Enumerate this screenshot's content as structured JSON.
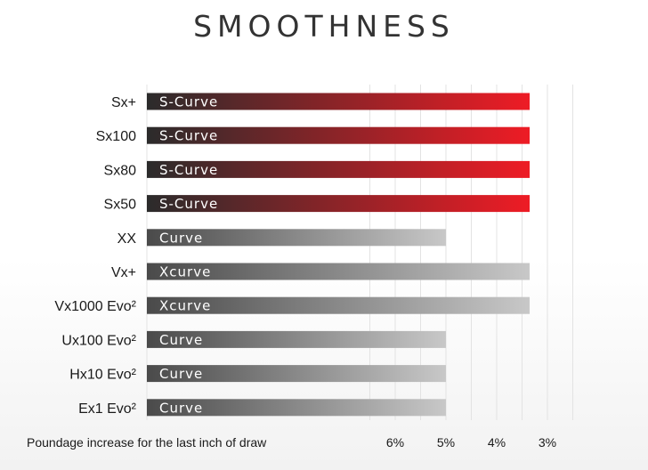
{
  "title": "SMOOTHNESS",
  "chart_data": {
    "type": "bar",
    "orientation": "horizontal",
    "title": "SMOOTHNESS",
    "xlabel": "Poundage increase for the last inch of draw",
    "ylabel": "",
    "x_reversed": true,
    "xlim": [
      6.9,
      2.5
    ],
    "x_ticks": [
      6,
      5,
      4,
      3
    ],
    "x_tick_labels": [
      "6%",
      "5%",
      "4%",
      "3%"
    ],
    "grid": true,
    "categories": [
      "Sx+",
      "Sx100",
      "Sx80",
      "Sx50",
      "XX",
      "Vx+",
      "Vx1000 Evo²",
      "Ux100 Evo²",
      "Hx10 Evo²",
      "Ex1 Evo²"
    ],
    "values": [
      3.35,
      3.35,
      3.35,
      3.35,
      5.0,
      3.35,
      3.35,
      5.0,
      5.0,
      5.0
    ],
    "bar_labels": [
      "S-Curve",
      "S-Curve",
      "S-Curve",
      "S-Curve",
      "Curve",
      "Xcurve",
      "Xcurve",
      "Curve",
      "Curve",
      "Curve"
    ],
    "bar_styles": [
      "red",
      "red",
      "red",
      "red",
      "gray",
      "gray",
      "gray",
      "gray",
      "gray",
      "gray"
    ],
    "colors": {
      "red_start": "#2b2b2b",
      "red_end": "#ee1c25",
      "gray_start": "#4a4a4a",
      "gray_end": "#c8c8c8",
      "grid": "#e3e3e3"
    }
  }
}
